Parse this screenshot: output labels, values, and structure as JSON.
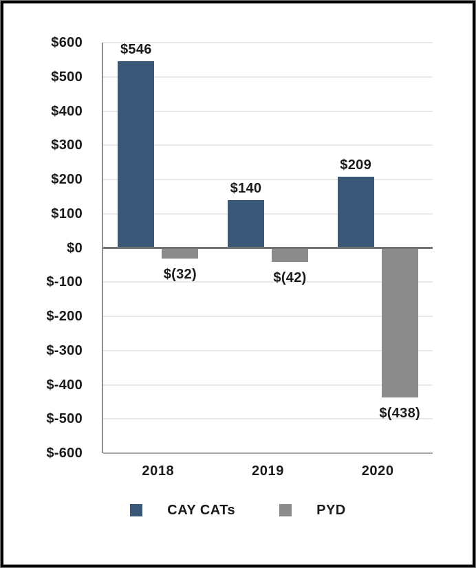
{
  "chart_data": {
    "type": "bar",
    "title": "",
    "categories": [
      "2018",
      "2019",
      "2020"
    ],
    "series": [
      {
        "name": "CAY CATs",
        "color": "#3a5878",
        "values": [
          546,
          140,
          209
        ],
        "data_labels": [
          "$546",
          "$140",
          "$209"
        ]
      },
      {
        "name": "PYD",
        "color": "#8c8c8c",
        "values": [
          -32,
          -42,
          -438
        ],
        "data_labels": [
          "$(32)",
          "$(42)",
          "$(438)"
        ]
      }
    ],
    "y_axis": {
      "min": -600,
      "max": 600,
      "step": 100,
      "tick_labels": [
        "$600",
        "$500",
        "$400",
        "$300",
        "$200",
        "$100",
        "$0",
        "$-100",
        "$-200",
        "$-300",
        "$-400",
        "$-500",
        "$-600"
      ]
    },
    "x_axis": {
      "tick_labels": [
        "2018",
        "2019",
        "2020"
      ]
    },
    "grid": true,
    "legend_position": "bottom",
    "colors": {
      "gridline": "#e9e9ec",
      "zero_line": "#737373",
      "axis_line": "#8f8f8f",
      "text": "#1a1a1a",
      "frame_border": "#000000"
    }
  }
}
